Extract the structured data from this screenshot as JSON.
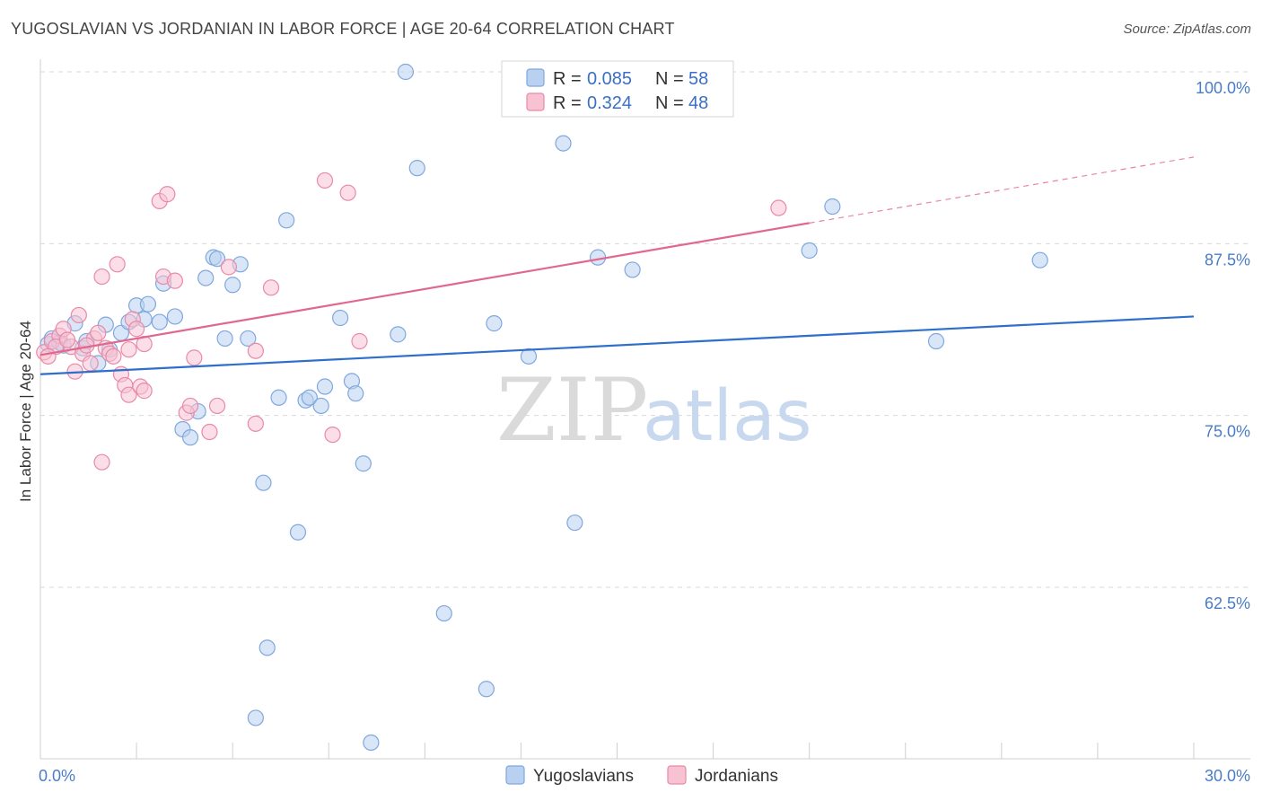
{
  "title": "YUGOSLAVIAN VS JORDANIAN IN LABOR FORCE | AGE 20-64 CORRELATION CHART",
  "source": "Source: ZipAtlas.com",
  "watermark": {
    "zip": "ZIP",
    "atlas": "atlas"
  },
  "colors": {
    "yugo_fill": "#b9d1f1",
    "yugo_stroke": "#7fa8de",
    "yugo_line": "#2e6fcc",
    "jord_fill": "#f7c3d3",
    "jord_stroke": "#e88aa8",
    "jord_line": "#e0688f",
    "grid": "#d9d9d9",
    "tick_text": "#4a7cc8"
  },
  "chart_data": {
    "type": "scatter",
    "title": "YUGOSLAVIAN VS JORDANIAN IN LABOR FORCE | AGE 20-64 CORRELATION CHART",
    "xlabel": "",
    "ylabel": "In Labor Force | Age 20-64",
    "xlim": [
      0,
      30
    ],
    "ylim": [
      52.5,
      102
    ],
    "y_ticks": [
      62.5,
      75.0,
      87.5,
      100.0
    ],
    "y_tick_labels": [
      "62.5%",
      "75.0%",
      "87.5%",
      "100.0%"
    ],
    "x_tick_labels": [
      "0.0%",
      "30.0%"
    ],
    "grid": true,
    "legend_position": "top-center",
    "legend": [
      {
        "r_label": "R = ",
        "r": "0.085",
        "n_label": "N = ",
        "n": "58"
      },
      {
        "r_label": "R = ",
        "r": "0.324",
        "n_label": "N = ",
        "n": "48"
      }
    ],
    "series": [
      {
        "name": "Yugoslavians",
        "trend": {
          "x": [
            0,
            30
          ],
          "y": [
            78.0,
            82.2
          ],
          "dashed_to": null
        },
        "points": [
          [
            0.2,
            80.2
          ],
          [
            0.3,
            80.6
          ],
          [
            0.5,
            80.3
          ],
          [
            0.6,
            80.1
          ],
          [
            0.9,
            81.7
          ],
          [
            1.1,
            79.9
          ],
          [
            1.2,
            80.4
          ],
          [
            1.5,
            78.8
          ],
          [
            1.7,
            81.6
          ],
          [
            1.8,
            79.8
          ],
          [
            2.1,
            81.0
          ],
          [
            2.3,
            81.8
          ],
          [
            2.5,
            83.0
          ],
          [
            2.7,
            82.0
          ],
          [
            2.8,
            83.1
          ],
          [
            3.1,
            81.8
          ],
          [
            3.2,
            84.6
          ],
          [
            3.5,
            82.2
          ],
          [
            3.7,
            74.0
          ],
          [
            3.9,
            73.4
          ],
          [
            4.1,
            75.3
          ],
          [
            4.3,
            85.0
          ],
          [
            4.5,
            86.5
          ],
          [
            4.6,
            86.4
          ],
          [
            4.8,
            80.6
          ],
          [
            5.0,
            84.5
          ],
          [
            5.2,
            86.0
          ],
          [
            5.4,
            80.6
          ],
          [
            5.6,
            53.0
          ],
          [
            5.8,
            70.1
          ],
          [
            5.9,
            58.1
          ],
          [
            6.2,
            76.3
          ],
          [
            6.4,
            89.2
          ],
          [
            6.7,
            66.5
          ],
          [
            6.9,
            76.1
          ],
          [
            7.0,
            76.3
          ],
          [
            7.3,
            75.7
          ],
          [
            7.4,
            77.1
          ],
          [
            7.8,
            82.1
          ],
          [
            8.1,
            77.5
          ],
          [
            8.2,
            76.6
          ],
          [
            8.4,
            71.5
          ],
          [
            8.6,
            51.2
          ],
          [
            9.3,
            80.9
          ],
          [
            9.5,
            100.0
          ],
          [
            9.8,
            93.0
          ],
          [
            10.5,
            60.6
          ],
          [
            11.6,
            55.1
          ],
          [
            11.8,
            81.7
          ],
          [
            12.7,
            79.3
          ],
          [
            13.6,
            94.8
          ],
          [
            13.9,
            67.2
          ],
          [
            14.5,
            86.5
          ],
          [
            15.4,
            85.6
          ],
          [
            20.0,
            87.0
          ],
          [
            20.6,
            90.2
          ],
          [
            23.3,
            80.4
          ],
          [
            26.0,
            86.3
          ]
        ]
      },
      {
        "name": "Jordanians",
        "trend": {
          "x": [
            0,
            20.0
          ],
          "y": [
            79.4,
            89.0
          ],
          "dashed_to": [
            30,
            93.8
          ]
        },
        "points": [
          [
            0.1,
            79.6
          ],
          [
            0.3,
            80.4
          ],
          [
            0.5,
            80.8
          ],
          [
            0.6,
            81.3
          ],
          [
            0.8,
            80.0
          ],
          [
            0.9,
            78.2
          ],
          [
            1.0,
            82.3
          ],
          [
            1.1,
            79.5
          ],
          [
            1.3,
            78.8
          ],
          [
            1.4,
            80.6
          ],
          [
            1.5,
            81.0
          ],
          [
            1.6,
            85.1
          ],
          [
            1.7,
            79.9
          ],
          [
            1.8,
            79.5
          ],
          [
            1.9,
            79.3
          ],
          [
            2.0,
            86.0
          ],
          [
            2.1,
            78.0
          ],
          [
            2.2,
            77.2
          ],
          [
            2.3,
            76.5
          ],
          [
            2.4,
            82.0
          ],
          [
            2.5,
            81.3
          ],
          [
            2.6,
            77.1
          ],
          [
            2.7,
            80.2
          ],
          [
            2.7,
            76.8
          ],
          [
            3.1,
            90.6
          ],
          [
            3.2,
            85.1
          ],
          [
            3.3,
            91.1
          ],
          [
            3.5,
            84.8
          ],
          [
            3.8,
            75.2
          ],
          [
            3.9,
            75.7
          ],
          [
            4.0,
            79.2
          ],
          [
            4.4,
            73.8
          ],
          [
            4.6,
            75.7
          ],
          [
            4.9,
            85.8
          ],
          [
            5.6,
            79.7
          ],
          [
            5.6,
            74.4
          ],
          [
            6.0,
            84.3
          ],
          [
            1.6,
            71.6
          ],
          [
            7.4,
            92.1
          ],
          [
            7.6,
            73.6
          ],
          [
            8.0,
            91.2
          ],
          [
            8.3,
            80.4
          ],
          [
            19.2,
            90.1
          ],
          [
            0.4,
            80.0
          ],
          [
            1.2,
            80.1
          ],
          [
            0.7,
            80.5
          ],
          [
            2.3,
            79.8
          ],
          [
            0.2,
            79.3
          ]
        ]
      }
    ]
  }
}
